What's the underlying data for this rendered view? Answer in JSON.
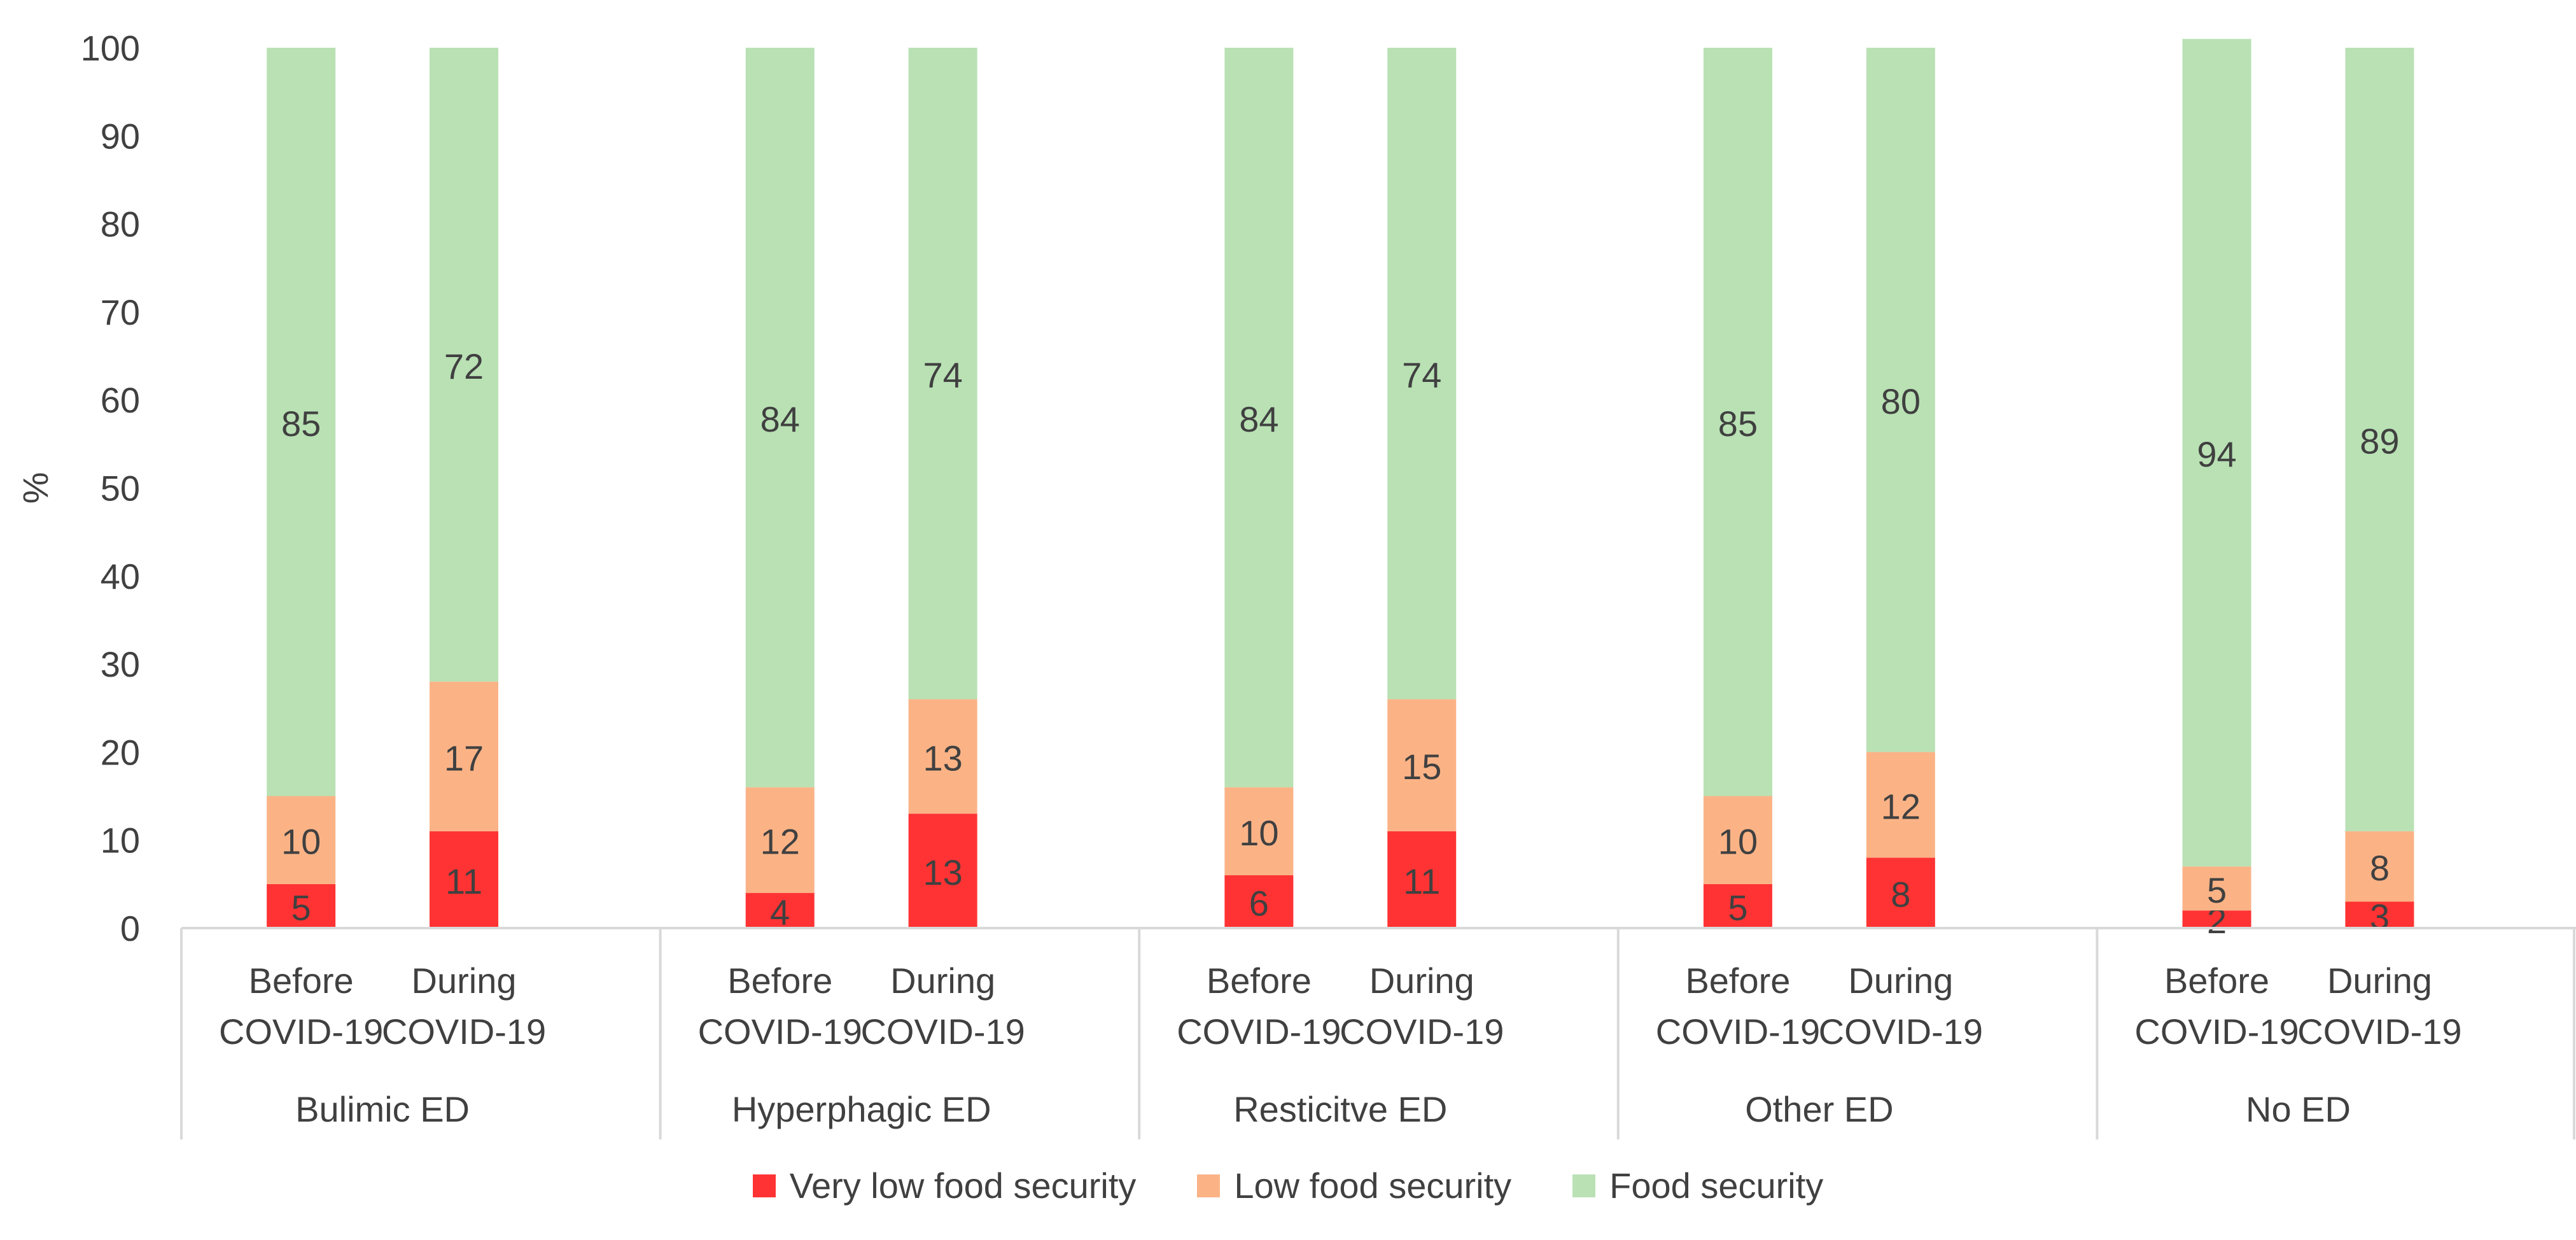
{
  "chart_data": {
    "type": "stacked-bar",
    "ylabel": "%",
    "ylim": [
      0,
      100
    ],
    "yticks": [
      "0",
      "10",
      "20",
      "30",
      "40",
      "50",
      "60",
      "70",
      "80",
      "90",
      "100"
    ],
    "grid": false,
    "groups": [
      {
        "label": "Bulimic ED",
        "bars": [
          {
            "label": [
              "Before",
              "COVID-19"
            ],
            "values": [
              5,
              10,
              85
            ]
          },
          {
            "label": [
              "During",
              "COVID-19"
            ],
            "values": [
              11,
              17,
              72
            ]
          }
        ]
      },
      {
        "label": "Hyperphagic ED",
        "bars": [
          {
            "label": [
              "Before",
              "COVID-19"
            ],
            "values": [
              4,
              12,
              84
            ]
          },
          {
            "label": [
              "During",
              "COVID-19"
            ],
            "values": [
              13,
              13,
              74
            ]
          }
        ]
      },
      {
        "label": "Resticitve ED",
        "bars": [
          {
            "label": [
              "Before",
              "COVID-19"
            ],
            "values": [
              6,
              10,
              84
            ]
          },
          {
            "label": [
              "During",
              "COVID-19"
            ],
            "values": [
              11,
              15,
              74
            ]
          }
        ]
      },
      {
        "label": "Other ED",
        "bars": [
          {
            "label": [
              "Before",
              "COVID-19"
            ],
            "values": [
              5,
              10,
              85
            ]
          },
          {
            "label": [
              "During",
              "COVID-19"
            ],
            "values": [
              8,
              12,
              80
            ]
          }
        ]
      },
      {
        "label": "No ED",
        "bars": [
          {
            "label": [
              "Before",
              "COVID-19"
            ],
            "values": [
              2,
              5,
              94
            ]
          },
          {
            "label": [
              "During",
              "COVID-19"
            ],
            "values": [
              3,
              8,
              89
            ]
          }
        ]
      }
    ],
    "series": [
      {
        "name": "Very low food security",
        "color": "#ff3333"
      },
      {
        "name": "Low food security",
        "color": "#fbb386"
      },
      {
        "name": "Food security",
        "color": "#b9e1b4"
      }
    ],
    "legend": "bottom"
  }
}
